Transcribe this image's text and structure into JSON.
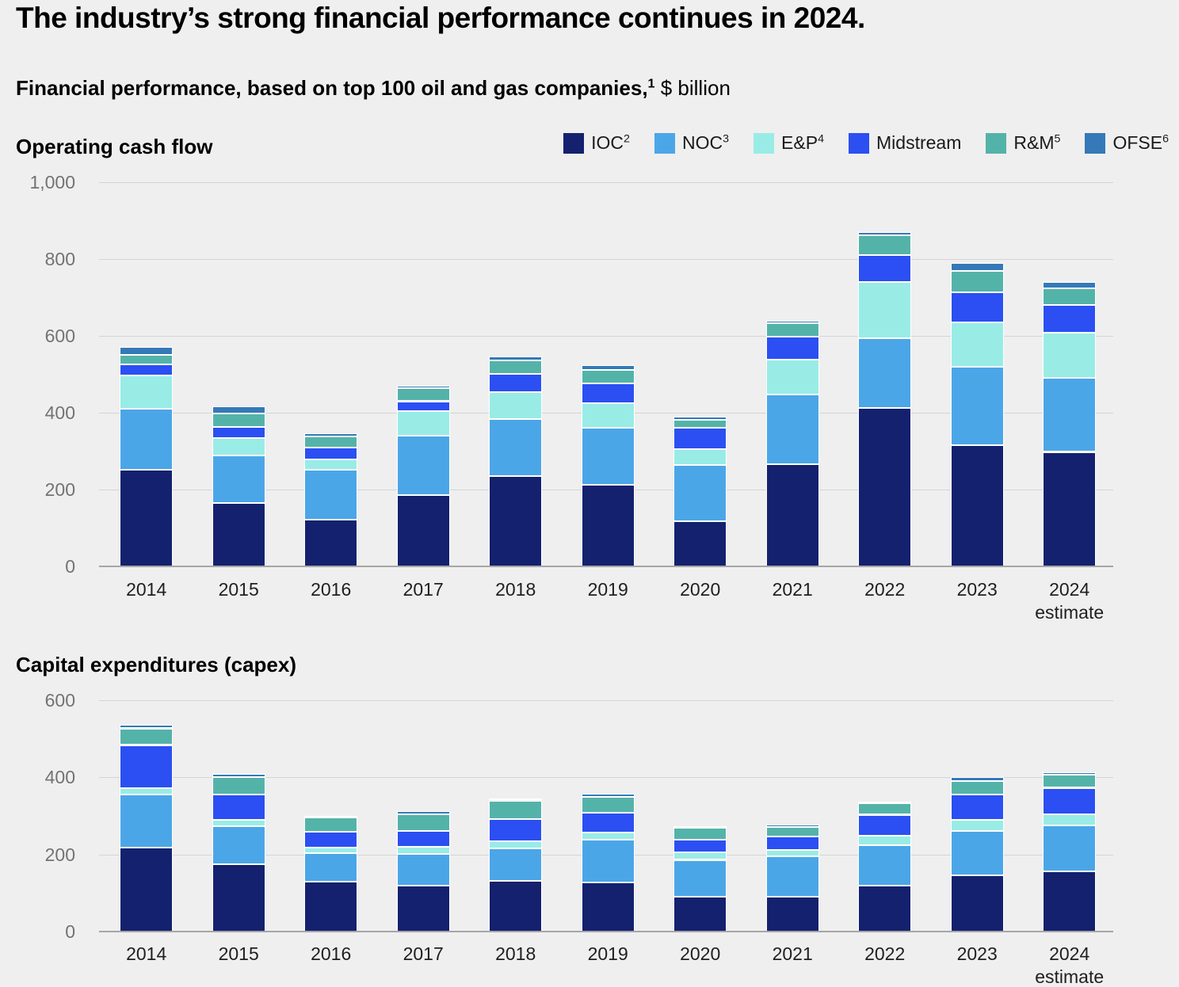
{
  "title": "The industry’s strong financial performance continues in 2024.",
  "subtitle": {
    "bold": "Financial performance, based on top 100 oil and gas companies,",
    "sup": "1",
    "normal": " $ billion"
  },
  "colors": {
    "background": "#efefef",
    "gridline": "#d4d4d4",
    "baseline": "#a6a6a6",
    "axis_text": "#737373",
    "label_text": "#1f1f1f",
    "ioc": "#14216e",
    "noc": "#4ba6e8",
    "ep": "#99ece6",
    "midstream": "#2b4ff2",
    "rm": "#54b3a9",
    "ofse": "#3579b8"
  },
  "legend": {
    "items": [
      {
        "label": "IOC",
        "sup": "2",
        "color": "#14216e"
      },
      {
        "label": "NOC",
        "sup": "3",
        "color": "#4ba6e8"
      },
      {
        "label": "E&P",
        "sup": "4",
        "color": "#99ece6"
      },
      {
        "label": "Midstream",
        "sup": "",
        "color": "#2b4ff2"
      },
      {
        "label": "R&M",
        "sup": "5",
        "color": "#54b3a9"
      },
      {
        "label": "OFSE",
        "sup": "6",
        "color": "#3579b8"
      }
    ]
  },
  "chart_data": [
    {
      "type": "bar",
      "stacked": true,
      "title": "Operating cash flow",
      "unit": "$ billion",
      "grid": true,
      "legend_position": "top-right",
      "categories": [
        "2014",
        "2015",
        "2016",
        "2017",
        "2018",
        "2019",
        "2020",
        "2021",
        "2022",
        "2023",
        "2024"
      ],
      "last_category_sublabel": "estimate",
      "ylim": [
        0,
        1000
      ],
      "y_ticks": [
        {
          "v": 0,
          "label": "0"
        },
        {
          "v": 200,
          "label": "200"
        },
        {
          "v": 400,
          "label": "400"
        },
        {
          "v": 600,
          "label": "600"
        },
        {
          "v": 800,
          "label": "800"
        },
        {
          "v": 1000,
          "label": "1,000"
        }
      ],
      "series": [
        {
          "name": "IOC",
          "sup": "2",
          "color": "#14216e",
          "values": [
            251,
            165,
            121,
            185,
            235,
            212,
            118,
            266,
            412,
            316,
            298
          ]
        },
        {
          "name": "NOC",
          "sup": "3",
          "color": "#4ba6e8",
          "values": [
            159,
            123,
            130,
            156,
            148,
            148,
            145,
            181,
            181,
            204,
            192
          ]
        },
        {
          "name": "E&P",
          "sup": "4",
          "color": "#99ece6",
          "values": [
            87,
            46,
            28,
            64,
            70,
            65,
            43,
            92,
            147,
            115,
            118
          ]
        },
        {
          "name": "Midstream",
          "sup": "",
          "color": "#2b4ff2",
          "values": [
            28,
            30,
            31,
            25,
            48,
            52,
            55,
            60,
            71,
            79,
            72
          ]
        },
        {
          "name": "R&M",
          "sup": "5",
          "color": "#54b3a9",
          "values": [
            26,
            34,
            28,
            33,
            35,
            35,
            21,
            34,
            50,
            56,
            44
          ]
        },
        {
          "name": "OFSE",
          "sup": "6",
          "color": "#3579b8",
          "values": [
            21,
            19,
            9,
            8,
            11,
            12,
            8,
            7,
            9,
            20,
            16
          ]
        }
      ]
    },
    {
      "type": "bar",
      "stacked": true,
      "title": "Capital expenditures (capex)",
      "unit": "$ billion",
      "grid": true,
      "categories": [
        "2014",
        "2015",
        "2016",
        "2017",
        "2018",
        "2019",
        "2020",
        "2021",
        "2022",
        "2023",
        "2024"
      ],
      "last_category_sublabel": "estimate",
      "ylim": [
        0,
        600
      ],
      "y_ticks": [
        {
          "v": 0,
          "label": "0"
        },
        {
          "v": 200,
          "label": "200"
        },
        {
          "v": 400,
          "label": "400"
        },
        {
          "v": 600,
          "label": "600"
        }
      ],
      "series": [
        {
          "name": "IOC",
          "sup": "2",
          "color": "#14216e",
          "values": [
            218,
            175,
            130,
            119,
            131,
            128,
            91,
            91,
            120,
            146,
            156
          ]
        },
        {
          "name": "NOC",
          "sup": "3",
          "color": "#4ba6e8",
          "values": [
            137,
            98,
            74,
            82,
            85,
            110,
            95,
            104,
            104,
            115,
            120
          ]
        },
        {
          "name": "E&P",
          "sup": "4",
          "color": "#99ece6",
          "values": [
            18,
            17,
            14,
            18,
            19,
            19,
            20,
            16,
            24,
            28,
            28
          ]
        },
        {
          "name": "Midstream",
          "sup": "",
          "color": "#2b4ff2",
          "values": [
            111,
            65,
            40,
            42,
            57,
            51,
            32,
            35,
            55,
            66,
            69
          ]
        },
        {
          "name": "R&M",
          "sup": "5",
          "color": "#54b3a9",
          "values": [
            43,
            46,
            37,
            44,
            48,
            41,
            32,
            25,
            29,
            36,
            34
          ]
        },
        {
          "name": "OFSE",
          "sup": "6",
          "color": "#3579b8",
          "values": [
            9,
            9,
            5,
            7,
            6,
            8,
            4,
            6,
            5,
            9,
            7
          ]
        }
      ]
    }
  ]
}
